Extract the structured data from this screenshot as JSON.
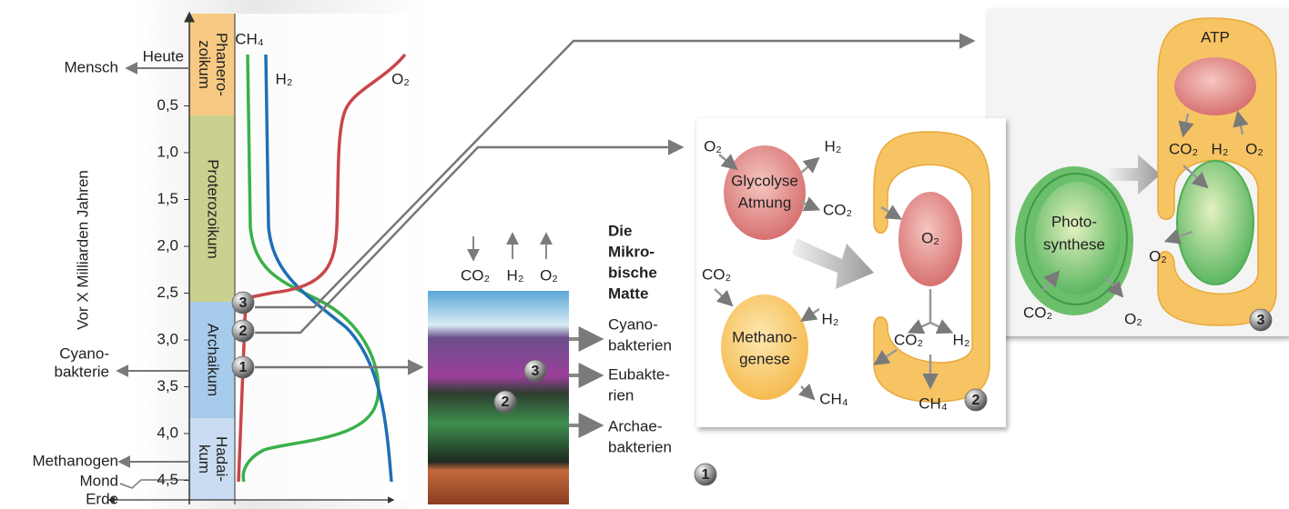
{
  "timeline": {
    "axis_label": "Vor X Milliarden Jahren",
    "now": "Heute",
    "ticks": [
      "0,5",
      "1,0",
      "1,5",
      "2,0",
      "2,5",
      "3,0",
      "3,5",
      "4,0",
      "4,5"
    ],
    "eons": [
      [
        "Phanero-",
        "zoikum"
      ],
      [
        "Proterozoikum"
      ],
      [
        "Archaikum"
      ],
      [
        "Hadai-",
        "kum"
      ]
    ],
    "events": [
      [
        "Mensch"
      ],
      [
        "Cyano-",
        "bakterie"
      ],
      [
        "Methanogen"
      ],
      [
        "Mond"
      ],
      [
        "Erde"
      ]
    ],
    "gases": [
      "CH₄",
      "H₂",
      "O₂"
    ],
    "markers": [
      "3",
      "2",
      "1"
    ]
  },
  "panel1": {
    "inputs": [
      "CO₂",
      "H₂",
      "O₂"
    ],
    "title": [
      "Die",
      "Mikro-",
      "bische",
      "Matte"
    ],
    "layers": [
      [
        "Cyano-",
        "bakterien"
      ],
      [
        "Eubakte-",
        "rien"
      ],
      [
        "Archae-",
        "bakterien"
      ]
    ],
    "markers": [
      "3",
      "2"
    ],
    "number": "1"
  },
  "panel2": {
    "glycolysis": [
      "Glycolyse",
      "Atmung"
    ],
    "methanogenesis": [
      "Methano-",
      "genese"
    ],
    "labels": {
      "o2_in": "O₂",
      "h2_out": "H₂",
      "co2_out": "CO₂",
      "co2_in": "CO₂",
      "h2_in": "H₂",
      "ch4_out": "CH₄",
      "cell_o2": "O₂",
      "cell_co2": "CO₂",
      "cell_h2": "H₂",
      "cell_ch4": "CH₄"
    },
    "number": "2"
  },
  "panel3": {
    "atp": "ATP",
    "cell_labels": [
      "CO₂",
      "H₂",
      "O₂"
    ],
    "photosynthesis": [
      "Photo-",
      "synthese"
    ],
    "o2_out": "O₂",
    "co2_in": "CO₂",
    "o2_released": "O₂",
    "number": "3"
  }
}
